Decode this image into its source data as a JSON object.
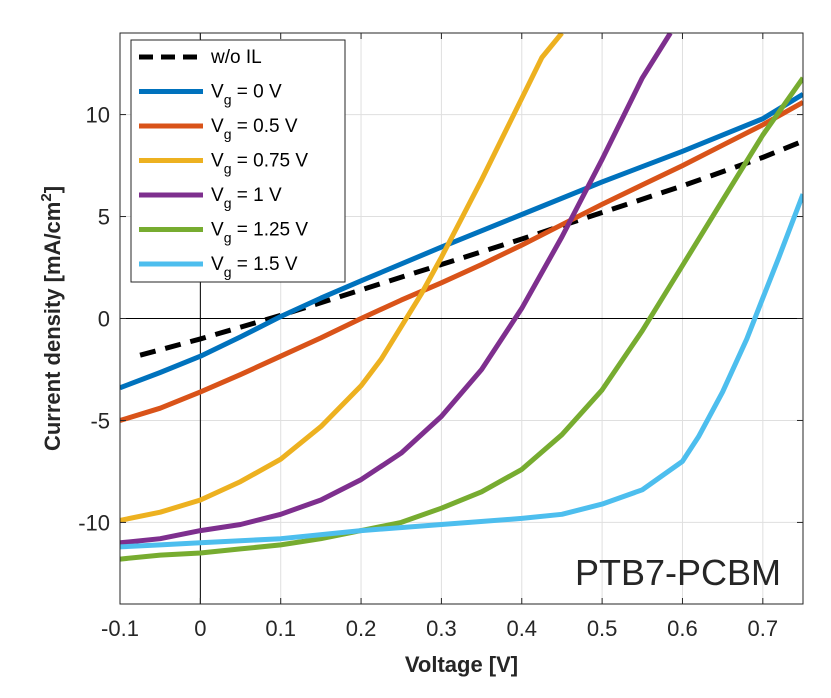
{
  "chart_data": {
    "type": "line",
    "annotation": "PTB7-PCBM",
    "xlabel": "Voltage [V]",
    "ylabel_prefix": "Current density [mA/cm",
    "ylabel_sup": "2",
    "ylabel_suffix": "]",
    "xlim": [
      -0.1,
      0.75
    ],
    "ylim": [
      -14,
      14
    ],
    "x_ticks": [
      -0.1,
      0,
      0.1,
      0.2,
      0.3,
      0.4,
      0.5,
      0.6,
      0.7
    ],
    "x_tick_labels": [
      "-0.1",
      "0",
      "0.1",
      "0.2",
      "0.3",
      "0.4",
      "0.5",
      "0.6",
      "0.7"
    ],
    "y_ticks": [
      -10,
      -5,
      0,
      5,
      10
    ],
    "y_tick_labels": [
      "-10",
      "-5",
      "0",
      "5",
      "10"
    ],
    "grid": true,
    "legend_position": "top-left",
    "series": [
      {
        "name": "w/o IL",
        "legend_main": "w/o IL",
        "legend_sub": "",
        "legend_tail": "",
        "color": "#000000",
        "dashed": true,
        "x": [
          -0.075,
          0.0,
          0.1,
          0.2,
          0.3,
          0.4,
          0.5,
          0.6,
          0.7,
          0.75
        ],
        "y": [
          -1.8,
          -1.0,
          0.15,
          1.4,
          2.65,
          3.9,
          5.2,
          6.5,
          7.9,
          8.7
        ]
      },
      {
        "name": "V_g = 0 V",
        "legend_main": "V",
        "legend_sub": "g",
        "legend_tail": " = 0 V",
        "color": "#0072BD",
        "dashed": false,
        "x": [
          -0.1,
          -0.05,
          0.0,
          0.05,
          0.1,
          0.15,
          0.2,
          0.3,
          0.4,
          0.5,
          0.6,
          0.7,
          0.75
        ],
        "y": [
          -3.4,
          -2.65,
          -1.85,
          -0.9,
          0.1,
          1.0,
          1.85,
          3.5,
          5.1,
          6.7,
          8.2,
          9.8,
          11.0
        ]
      },
      {
        "name": "V_g = 0.5 V",
        "legend_main": "V",
        "legend_sub": "g",
        "legend_tail": " = 0.5 V",
        "color": "#D95319",
        "dashed": false,
        "x": [
          -0.1,
          -0.05,
          0.0,
          0.05,
          0.1,
          0.15,
          0.2,
          0.25,
          0.3,
          0.35,
          0.4,
          0.45,
          0.5,
          0.55,
          0.6,
          0.65,
          0.7,
          0.75
        ],
        "y": [
          -5.0,
          -4.4,
          -3.6,
          -2.75,
          -1.85,
          -0.95,
          0.0,
          0.9,
          1.75,
          2.65,
          3.6,
          4.6,
          5.6,
          6.55,
          7.5,
          8.5,
          9.5,
          10.6
        ]
      },
      {
        "name": "V_g = 0.75 V",
        "legend_main": "V",
        "legend_sub": "g",
        "legend_tail": " = 0.75 V",
        "color": "#EDB120",
        "dashed": false,
        "x": [
          -0.1,
          -0.05,
          0.0,
          0.05,
          0.1,
          0.15,
          0.2,
          0.225,
          0.25,
          0.275,
          0.3,
          0.325,
          0.35,
          0.375,
          0.4,
          0.425,
          0.45
        ],
        "y": [
          -9.9,
          -9.5,
          -8.9,
          -8.0,
          -6.9,
          -5.3,
          -3.3,
          -2.0,
          -0.4,
          1.2,
          3.0,
          4.9,
          6.8,
          8.8,
          10.8,
          12.8,
          14.0
        ]
      },
      {
        "name": "V_g = 1 V",
        "legend_main": "V",
        "legend_sub": "g",
        "legend_tail": " = 1 V",
        "color": "#7E2F8E",
        "dashed": false,
        "x": [
          -0.1,
          -0.05,
          0.0,
          0.05,
          0.1,
          0.15,
          0.2,
          0.25,
          0.3,
          0.35,
          0.4,
          0.45,
          0.5,
          0.55,
          0.585
        ],
        "y": [
          -11.0,
          -10.8,
          -10.4,
          -10.1,
          -9.6,
          -8.9,
          -7.9,
          -6.6,
          -4.8,
          -2.5,
          0.5,
          4.0,
          7.8,
          11.8,
          14.0
        ]
      },
      {
        "name": "V_g = 1.25 V",
        "legend_main": "V",
        "legend_sub": "g",
        "legend_tail": " = 1.25 V",
        "color": "#77AC30",
        "dashed": false,
        "x": [
          -0.1,
          -0.05,
          0.0,
          0.05,
          0.1,
          0.15,
          0.2,
          0.25,
          0.3,
          0.35,
          0.4,
          0.45,
          0.5,
          0.55,
          0.6,
          0.65,
          0.7,
          0.75
        ],
        "y": [
          -11.8,
          -11.6,
          -11.5,
          -11.3,
          -11.1,
          -10.8,
          -10.4,
          -10.0,
          -9.3,
          -8.5,
          -7.4,
          -5.7,
          -3.5,
          -0.6,
          2.6,
          5.8,
          9.0,
          11.8
        ]
      },
      {
        "name": "V_g = 1.5 V",
        "legend_main": "V",
        "legend_sub": "g",
        "legend_tail": " = 1.5 V",
        "color": "#4DBEEE",
        "dashed": false,
        "x": [
          -0.1,
          -0.05,
          0.0,
          0.1,
          0.2,
          0.3,
          0.4,
          0.45,
          0.5,
          0.55,
          0.6,
          0.62,
          0.65,
          0.68,
          0.7,
          0.72,
          0.75
        ],
        "y": [
          -11.2,
          -11.1,
          -11.0,
          -10.8,
          -10.4,
          -10.1,
          -9.8,
          -9.6,
          -9.1,
          -8.4,
          -7.0,
          -5.8,
          -3.6,
          -1.0,
          1.0,
          3.0,
          6.1
        ]
      }
    ]
  }
}
